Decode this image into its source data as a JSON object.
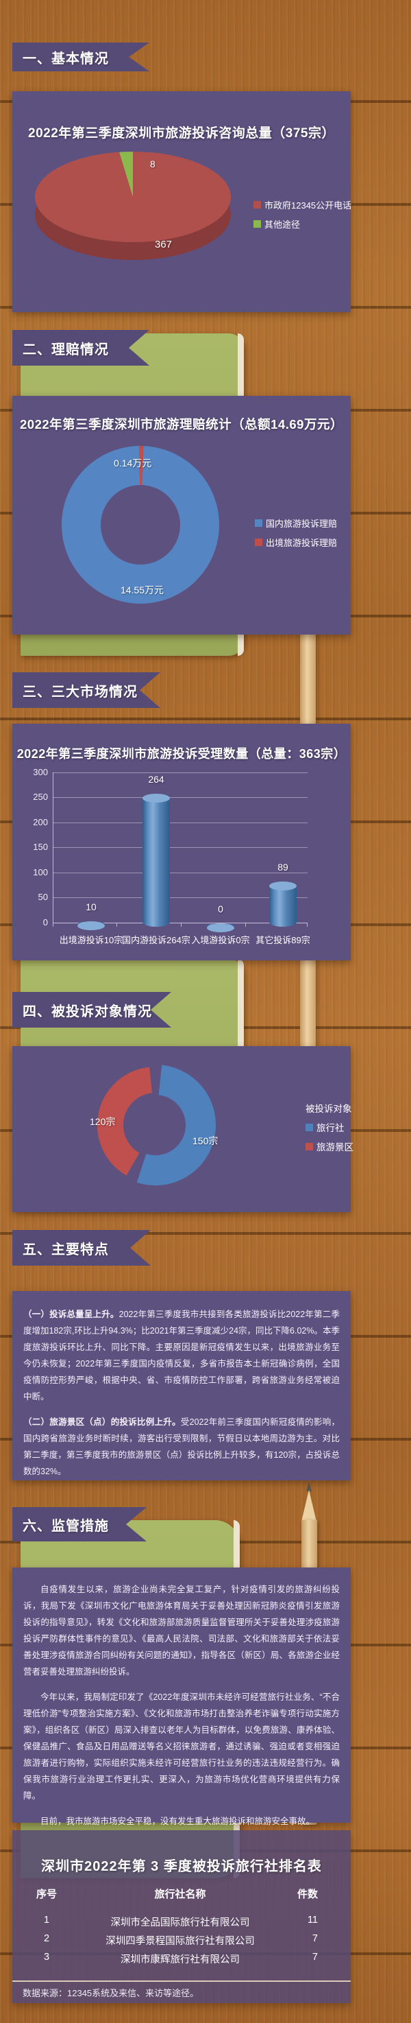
{
  "sections": [
    {
      "banner": "一、基本情况"
    },
    {
      "banner": "二、理赔情况"
    },
    {
      "banner": "三、三大市场情况"
    },
    {
      "banner": "四、被投诉对象情况"
    },
    {
      "banner": "五、主要特点"
    },
    {
      "banner": "六、监管措施"
    }
  ],
  "chart_data": [
    {
      "type": "pie",
      "style": "3d-pie",
      "title": "2022年第三季度深圳市旅游投诉咨询总量（375宗）",
      "categories": [
        "市政府12345公开电话",
        "其他途径"
      ],
      "values": [
        367,
        8
      ],
      "colors": [
        "#af504d",
        "#8cb94e"
      ],
      "legend_position": "right"
    },
    {
      "type": "pie",
      "style": "doughnut",
      "title": "2022年第三季度深圳市旅游理赔统计（总额14.69万元）",
      "categories": [
        "国内旅游投诉理赔",
        "出境旅游投诉理赔"
      ],
      "values": [
        14.55,
        0.14
      ],
      "value_labels": [
        "14.55万元",
        "0.14万元"
      ],
      "colors": [
        "#5585c3",
        "#bf4f4c"
      ],
      "legend_position": "right"
    },
    {
      "type": "bar",
      "style": "3d-cylinder",
      "title": "2022年第三季度深圳市旅游投诉受理数量（总量：363宗）",
      "categories": [
        "出境游投诉10宗",
        "国内游投诉264宗",
        "入境游投诉0宗",
        "其它投诉89宗"
      ],
      "values": [
        10,
        264,
        0,
        89
      ],
      "ylim": [
        0,
        300
      ],
      "yticks": [
        300,
        250,
        200,
        150,
        100,
        50,
        0
      ],
      "bar_color": "#4f81bd",
      "grid": true
    },
    {
      "type": "pie",
      "style": "doughnut-split",
      "legend_title": "被投诉对象",
      "categories": [
        "旅行社",
        "旅游景区"
      ],
      "values": [
        150,
        120
      ],
      "value_labels": [
        "150宗",
        "120宗"
      ],
      "colors": [
        "#4f81bd",
        "#bf504d"
      ],
      "legend_position": "right"
    }
  ],
  "features": {
    "items": [
      {
        "lead": "（一）投诉总量呈上升。",
        "body": "2022年第三季度我市共接到各类旅游投诉比2022年第二季度增加182宗,环比上升94.3%；比2021年第三季度减少24宗，同比下降6.02%。本季度旅游投诉环比上升、同比下降。主要原因是新冠疫情发生以来，出境旅游业务至今仍未恢复；2022年第三季度国内疫情反复，多省市报告本土新冠确诊病例，全国疫情防控形势严峻，根据中央、省、市疫情防控工作部署，跨省旅游业务经常被迫中断。"
      },
      {
        "lead": "（二）旅游景区（点）的投诉比例上升。",
        "body": "受2022年前三季度国内新冠疫情的影响，国内跨省旅游业务时断时续，游客出行受到限制，节假日以本地周边游为主。对比第二季度，第三季度我市的旅游景区（点）投诉比例上升较多，有120宗，占投诉总数的32%。"
      }
    ]
  },
  "measures": {
    "paragraphs": [
      "自疫情发生以来，旅游企业尚未完全复工复产，针对疫情引发的旅游纠纷投诉，我局下发《深圳市文化广电旅游体育局关于妥善处理因新冠肺炎疫情引发旅游投诉的指导意见》，转发《文化和旅游部旅游质量监督管理所关于妥善处理涉疫旅游投诉严防群体性事件的意见》、《最高人民法院、司法部、文化和旅游部关于依法妥善处理涉疫情旅游合同纠纷有关问题的通知》，指导各区（新区）局、各旅游企业经营者妥善处理旅游纠纷投诉。",
      "今年以来，我局制定印发了《2022年度深圳市未经许可经营旅行社业务、“不合理低价游”专项整治实施方案》、《文化和旅游市场打击整治养老诈骗专项行动实施方案》，组织各区（新区）局深入排查以老年人为目标群体，以免费旅游、康养体验、保健品推广、食品及日用品赠送等名义招徕旅游者，通过诱骗、强迫或者变相强迫旅游者进行购物，实际组织实施未经许可经营旅行社业务的违法违规经营行为。确保我市旅游行业治理工作更扎实、更深入，为旅游市场优化营商环境提供有力保障。",
      "目前，我市旅游市场安全平稳，没有发生重大旅游投诉和旅游安全事故。"
    ]
  },
  "table": {
    "title": "深圳市2022年第 3 季度被投诉旅行社排名表",
    "headers": [
      "序号",
      "旅行社名称",
      "件数"
    ],
    "rows": [
      [
        "1",
        "深圳市全品国际旅行社有限公司",
        "11"
      ],
      [
        "2",
        "深圳四季景程国际旅行社有限公司",
        "7"
      ],
      [
        "3",
        "深圳市康辉旅行社有限公司",
        "7"
      ]
    ]
  },
  "footer_note": "数据来源：12345系统及来信、来访等途径。",
  "colors": {
    "panel_purple": "#5d5180",
    "banner_purple": "#564a76",
    "pie_red": "#af504d",
    "pie_green": "#8cb94e",
    "donut_blue": "#5585c3",
    "donut_red": "#bf4f4c",
    "bar_blue": "#4f81bd",
    "notebook_green": "#a2b161"
  }
}
